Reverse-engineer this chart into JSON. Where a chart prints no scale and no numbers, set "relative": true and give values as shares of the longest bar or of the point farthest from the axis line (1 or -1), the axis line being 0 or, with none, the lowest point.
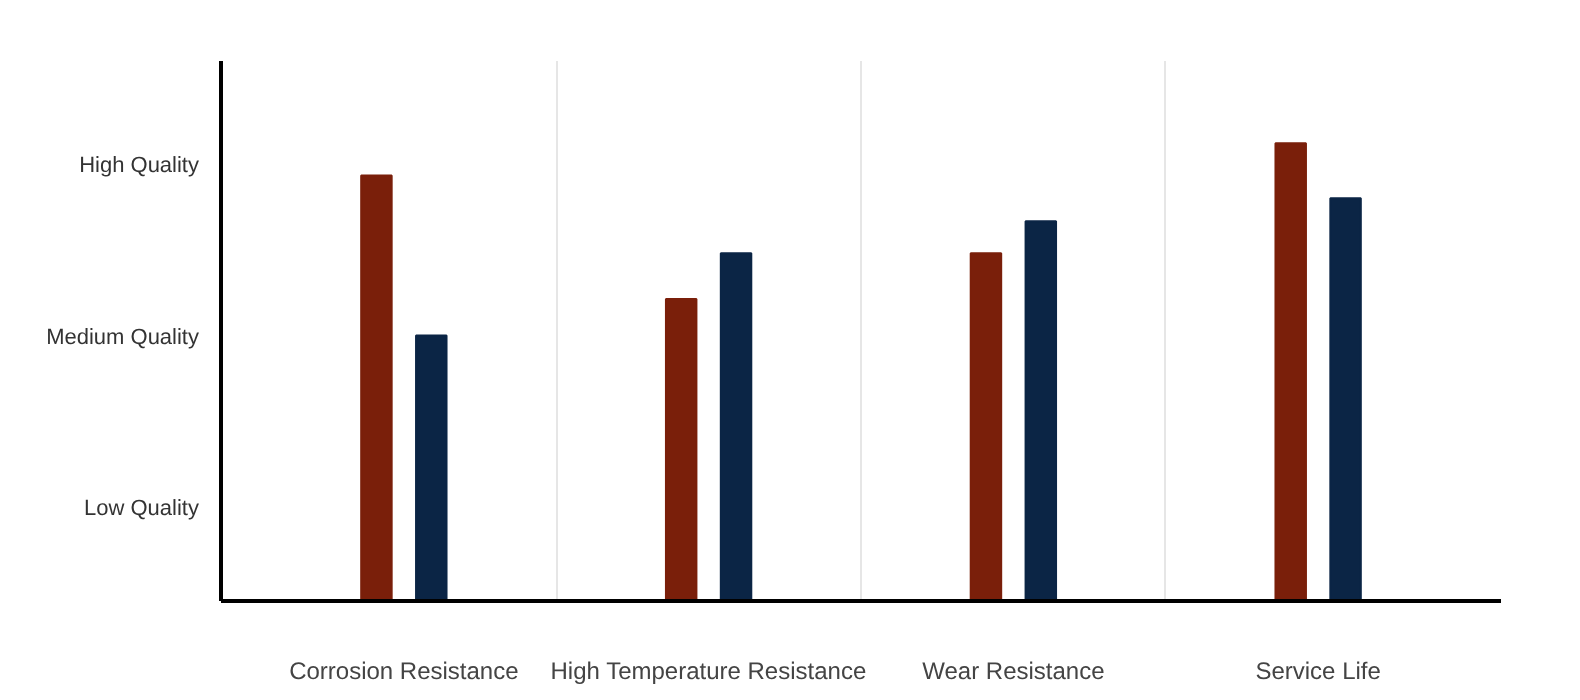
{
  "chart_data": {
    "type": "bar",
    "categories": [
      "Corrosion Resistance",
      "High Temperature Resistance",
      "Wear Resistance",
      "Service Life"
    ],
    "series": [
      {
        "color": "#7a1f0a",
        "values": [
          0.93,
          0.66,
          0.76,
          1
        ]
      },
      {
        "color": "#0b2545",
        "values": [
          0.58,
          0.76,
          0.83,
          0.88
        ]
      }
    ],
    "relative": true,
    "annotations": [
      "Low Quality",
      "Medium Quality",
      "High Quality"
    ],
    "grid": "x"
  }
}
